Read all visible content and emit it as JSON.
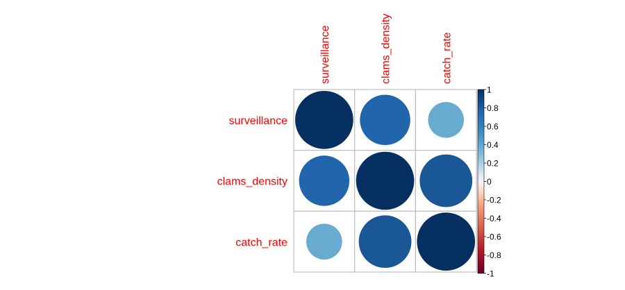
{
  "chart_data": {
    "type": "heatmap",
    "style": "correlation-circles",
    "variables": [
      "surveillance",
      "clams_density",
      "catch_rate"
    ],
    "matrix": [
      [
        1.0,
        0.75,
        0.38
      ],
      [
        0.75,
        1.0,
        0.82
      ],
      [
        0.38,
        0.82,
        1.0
      ]
    ],
    "color_scale": {
      "min": -1,
      "max": 1,
      "ticks": [
        1,
        0.8,
        0.6,
        0.4,
        0.2,
        0,
        -0.2,
        -0.4,
        -0.6,
        -0.8,
        -1
      ],
      "tick_labels": [
        "1",
        "0.8",
        "0.6",
        "0.4",
        "0.2",
        "0",
        "-0.2",
        "-0.4",
        "-0.6",
        "-0.8",
        "-1"
      ],
      "stops": [
        {
          "value": -1,
          "color": "#67001F"
        },
        {
          "value": -0.75,
          "color": "#B2182B"
        },
        {
          "value": -0.5,
          "color": "#D6604D"
        },
        {
          "value": -0.25,
          "color": "#F4A582"
        },
        {
          "value": -0.1,
          "color": "#FDDBC7"
        },
        {
          "value": 0,
          "color": "#F7F7F7"
        },
        {
          "value": 0.1,
          "color": "#D1E5F0"
        },
        {
          "value": 0.25,
          "color": "#92C5DE"
        },
        {
          "value": 0.5,
          "color": "#4393C3"
        },
        {
          "value": 0.75,
          "color": "#2166AC"
        },
        {
          "value": 1,
          "color": "#053061"
        }
      ]
    },
    "label_color": "#FF0000",
    "grid_color": "#BEBEBE",
    "legend_position": "right"
  }
}
